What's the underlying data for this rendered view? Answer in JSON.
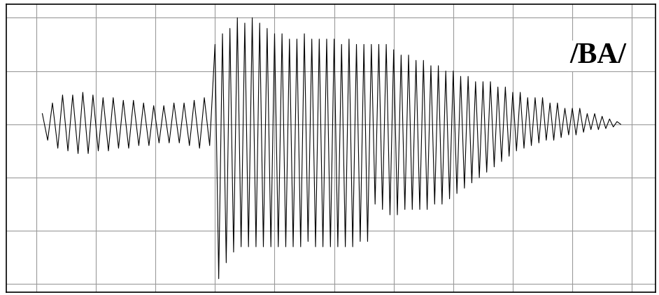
{
  "chart_data": {
    "type": "line",
    "title": "/BA/",
    "x": [
      0.1,
      0.19,
      0.27,
      0.36,
      0.44,
      0.53,
      0.61,
      0.7,
      0.78,
      0.87,
      0.95,
      1.04,
      1.12,
      1.21,
      1.29,
      1.38,
      1.46,
      1.55,
      1.63,
      1.72,
      1.8,
      1.89,
      1.97,
      2.06,
      2.14,
      2.23,
      2.31,
      2.4,
      2.48,
      2.57,
      2.65,
      2.74,
      2.82,
      2.91,
      3.0,
      3.062,
      3.125,
      3.188,
      3.25,
      3.312,
      3.375,
      3.438,
      3.5,
      3.562,
      3.625,
      3.688,
      3.75,
      3.812,
      3.875,
      3.938,
      4.0,
      4.062,
      4.125,
      4.188,
      4.25,
      4.312,
      4.375,
      4.438,
      4.5,
      4.562,
      4.625,
      4.688,
      4.75,
      4.812,
      4.875,
      4.938,
      5.0,
      5.062,
      5.125,
      5.188,
      5.25,
      5.312,
      5.375,
      5.438,
      5.5,
      5.562,
      5.625,
      5.688,
      5.75,
      5.812,
      5.875,
      5.938,
      6.0,
      6.062,
      6.125,
      6.188,
      6.25,
      6.312,
      6.375,
      6.438,
      6.5,
      6.562,
      6.625,
      6.688,
      6.75,
      6.812,
      6.875,
      6.938,
      7.0,
      7.062,
      7.125,
      7.188,
      7.25,
      7.312,
      7.375,
      7.438,
      7.5,
      7.562,
      7.625,
      7.688,
      7.75,
      7.812,
      7.875,
      7.938,
      8.0,
      8.062,
      8.125,
      8.188,
      8.25,
      8.312,
      8.375,
      8.438,
      8.5,
      8.562,
      8.625,
      8.688,
      8.75,
      8.812,
      8.875,
      8.938,
      9.0,
      9.062,
      9.125,
      9.188,
      9.25,
      9.312,
      9.375,
      9.438,
      9.5,
      9.562,
      9.625,
      9.688,
      9.75,
      9.812
    ],
    "values": [
      0.2,
      -0.3,
      0.4,
      -0.45,
      0.55,
      -0.5,
      0.55,
      -0.55,
      0.6,
      -0.55,
      0.55,
      -0.5,
      0.5,
      -0.5,
      0.5,
      -0.45,
      0.45,
      -0.45,
      0.45,
      -0.4,
      0.4,
      -0.4,
      0.35,
      -0.35,
      0.35,
      -0.35,
      0.4,
      -0.35,
      0.4,
      -0.4,
      0.45,
      -0.45,
      0.5,
      -0.4,
      1.5,
      -2.9,
      1.7,
      -2.6,
      1.8,
      -2.4,
      2.0,
      -2.3,
      1.9,
      -2.3,
      2.0,
      -2.3,
      1.9,
      -2.3,
      1.8,
      -2.3,
      1.7,
      -2.3,
      1.7,
      -2.3,
      1.6,
      -2.3,
      1.6,
      -2.3,
      1.7,
      -2.2,
      1.6,
      -2.3,
      1.6,
      -2.3,
      1.6,
      -2.3,
      1.6,
      -2.3,
      1.5,
      -2.3,
      1.6,
      -2.3,
      1.5,
      -2.2,
      1.5,
      -2.2,
      1.5,
      -1.5,
      1.5,
      -1.6,
      1.5,
      -1.7,
      1.4,
      -1.7,
      1.3,
      -1.6,
      1.3,
      -1.6,
      1.2,
      -1.6,
      1.2,
      -1.6,
      1.1,
      -1.5,
      1.1,
      -1.5,
      1.0,
      -1.4,
      1.0,
      -1.3,
      0.9,
      -1.2,
      0.9,
      -1.1,
      0.8,
      -1.0,
      0.8,
      -0.9,
      0.8,
      -0.8,
      0.7,
      -0.7,
      0.7,
      -0.6,
      0.6,
      -0.5,
      0.6,
      -0.45,
      0.5,
      -0.4,
      0.5,
      -0.35,
      0.5,
      -0.3,
      0.4,
      -0.3,
      0.4,
      -0.25,
      0.3,
      -0.2,
      0.3,
      -0.2,
      0.3,
      -0.15,
      0.2,
      -0.1,
      0.2,
      -0.1,
      0.15,
      -0.08,
      0.1,
      -0.05,
      0.05,
      0.0
    ],
    "color": "#000000",
    "xlim": [
      -0.5,
      10.4
    ],
    "xticks": [
      0,
      1,
      2,
      3,
      4,
      5,
      6,
      7,
      8,
      9,
      10
    ],
    "ylim": [
      -3.15,
      2.25
    ],
    "yticks": [
      -3,
      -2,
      -1,
      0,
      1,
      2
    ],
    "grid": true,
    "tick_labels": false
  }
}
